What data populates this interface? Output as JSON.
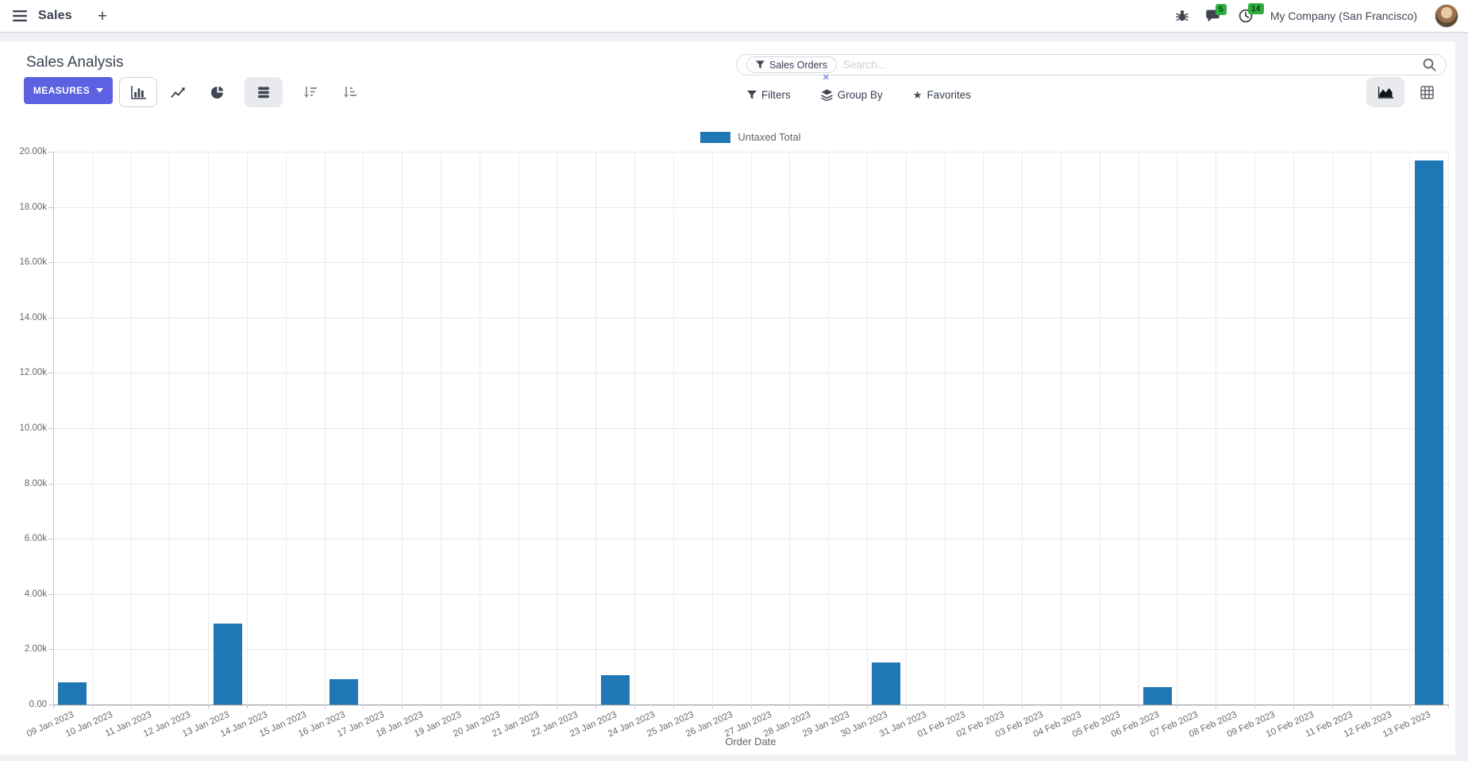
{
  "navbar": {
    "app_name": "Sales",
    "plus": "+",
    "badges": {
      "messages": "5",
      "activities": "14"
    },
    "company": "My Company (San Francisco)"
  },
  "control_panel": {
    "title": "Sales Analysis",
    "measures_label": "MEASURES",
    "search": {
      "facet_label": "Sales Orders",
      "facet_remove": "✕",
      "placeholder": "Search..."
    },
    "filters_label": "Filters",
    "group_by_label": "Group By",
    "favorites_label": "Favorites",
    "favorites_star": "★"
  },
  "chart_data": {
    "type": "bar",
    "title": "",
    "xlabel": "Order Date",
    "ylabel": "",
    "legend_position": "top",
    "grid": true,
    "x_tick_rotation": -24,
    "ylim": [
      0,
      20000
    ],
    "ytick_step": 2000,
    "ytick_labels": [
      "0.00",
      "2.00k",
      "4.00k",
      "6.00k",
      "8.00k",
      "10.00k",
      "12.00k",
      "14.00k",
      "16.00k",
      "18.00k",
      "20.00k"
    ],
    "categories": [
      "09 Jan 2023",
      "10 Jan 2023",
      "11 Jan 2023",
      "12 Jan 2023",
      "13 Jan 2023",
      "14 Jan 2023",
      "15 Jan 2023",
      "16 Jan 2023",
      "17 Jan 2023",
      "18 Jan 2023",
      "19 Jan 2023",
      "20 Jan 2023",
      "21 Jan 2023",
      "22 Jan 2023",
      "23 Jan 2023",
      "24 Jan 2023",
      "25 Jan 2023",
      "26 Jan 2023",
      "27 Jan 2023",
      "28 Jan 2023",
      "29 Jan 2023",
      "30 Jan 2023",
      "31 Jan 2023",
      "01 Feb 2023",
      "02 Feb 2023",
      "03 Feb 2023",
      "04 Feb 2023",
      "05 Feb 2023",
      "06 Feb 2023",
      "07 Feb 2023",
      "08 Feb 2023",
      "09 Feb 2023",
      "10 Feb 2023",
      "11 Feb 2023",
      "12 Feb 2023",
      "13 Feb 2023"
    ],
    "series": [
      {
        "name": "Untaxed Total",
        "color": "#1f77b4",
        "values": [
          800,
          0,
          0,
          0,
          2930,
          0,
          0,
          920,
          0,
          0,
          0,
          0,
          0,
          0,
          1060,
          0,
          0,
          0,
          0,
          0,
          0,
          1530,
          0,
          0,
          0,
          0,
          0,
          0,
          630,
          0,
          0,
          0,
          0,
          0,
          0,
          19680
        ]
      }
    ]
  }
}
